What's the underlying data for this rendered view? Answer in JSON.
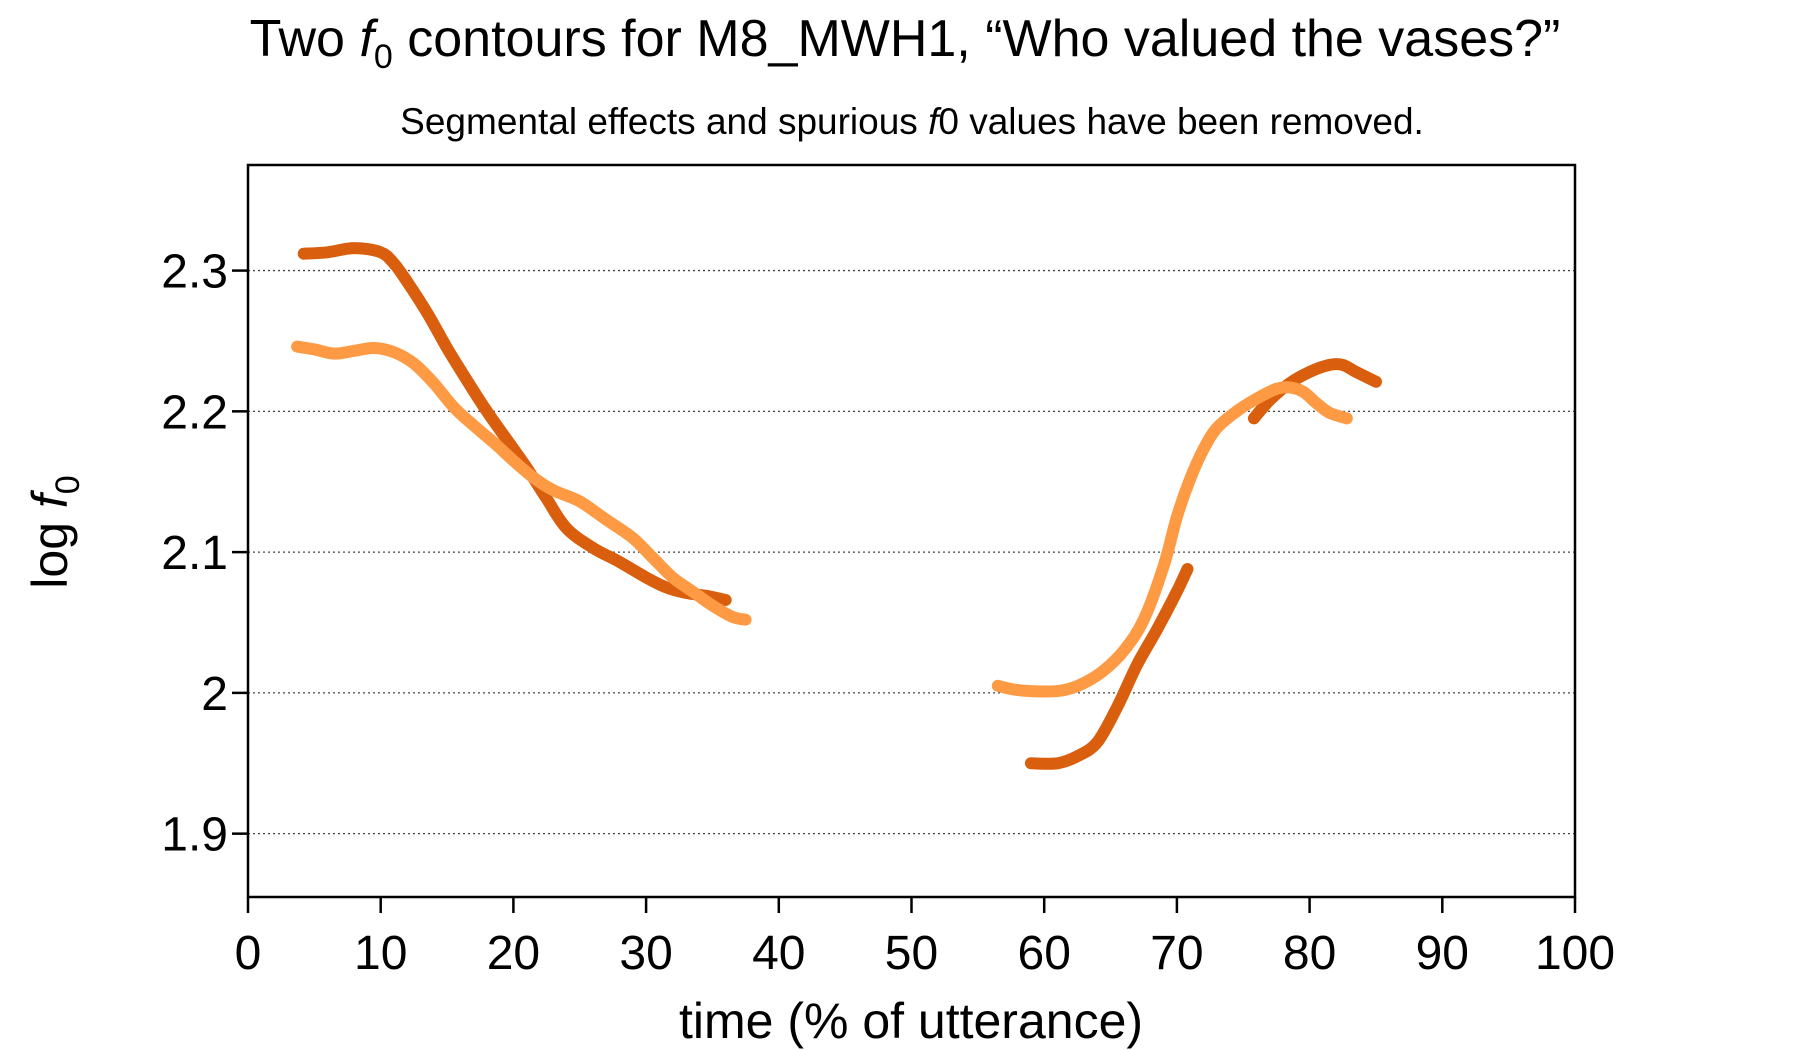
{
  "chart_data": {
    "type": "line",
    "title_parts": {
      "pre": "Two ",
      "f": "f",
      "sub": "0",
      "post": " contours for M8_MWH1, “Who valued the vases?”"
    },
    "subtitle_parts": {
      "pre": "Segmental effects and spurious ",
      "f": "f",
      "post": "0 values have been removed."
    },
    "xlabel": "time (% of utterance)",
    "ylabel_parts": {
      "pre": "log ",
      "f": "f",
      "sub": "0"
    },
    "xlim": [
      0,
      100
    ],
    "ylim": [
      1.855,
      2.375
    ],
    "x_ticks": [
      0,
      10,
      20,
      30,
      40,
      50,
      60,
      70,
      80,
      90,
      100
    ],
    "x_tick_labels": [
      "0",
      "10",
      "20",
      "30",
      "40",
      "50",
      "60",
      "70",
      "80",
      "90",
      "100"
    ],
    "y_ticks": [
      1.9,
      2.0,
      2.1,
      2.2,
      2.3
    ],
    "y_tick_labels": [
      "1.9",
      "2",
      "2.1",
      "2.2",
      "2.3"
    ],
    "grid": "horizontal dotted at y ticks",
    "colors": {
      "dark": "#d95f0e",
      "light": "#fe9a44"
    },
    "series": [
      {
        "color_key": "dark",
        "segments": [
          [
            [
              4.2,
              2.312
            ],
            [
              6,
              2.313
            ],
            [
              8,
              2.316
            ],
            [
              10,
              2.313
            ],
            [
              11,
              2.305
            ],
            [
              12,
              2.292
            ],
            [
              13.5,
              2.27
            ],
            [
              15,
              2.245
            ],
            [
              16.5,
              2.222
            ],
            [
              18,
              2.2
            ],
            [
              19.5,
              2.18
            ],
            [
              21,
              2.16
            ],
            [
              22.5,
              2.138
            ],
            [
              24,
              2.117
            ],
            [
              26,
              2.103
            ],
            [
              28,
              2.093
            ],
            [
              30,
              2.082
            ],
            [
              31.5,
              2.075
            ],
            [
              33,
              2.071
            ],
            [
              34.5,
              2.069
            ],
            [
              36,
              2.066
            ]
          ],
          [
            [
              59,
              1.95
            ],
            [
              61,
              1.95
            ],
            [
              62.5,
              1.955
            ],
            [
              64,
              1.965
            ],
            [
              65.5,
              1.99
            ],
            [
              67,
              2.02
            ],
            [
              68.5,
              2.045
            ],
            [
              70,
              2.072
            ],
            [
              70.8,
              2.088
            ]
          ],
          [
            [
              75.8,
              2.195
            ],
            [
              77,
              2.208
            ],
            [
              78.5,
              2.22
            ],
            [
              80,
              2.228
            ],
            [
              81.5,
              2.233
            ],
            [
              82.5,
              2.233
            ],
            [
              83.5,
              2.228
            ],
            [
              85,
              2.221
            ]
          ]
        ]
      },
      {
        "color_key": "light",
        "segments": [
          [
            [
              3.7,
              2.246
            ],
            [
              5,
              2.244
            ],
            [
              6.5,
              2.241
            ],
            [
              8,
              2.243
            ],
            [
              9.5,
              2.245
            ],
            [
              11,
              2.242
            ],
            [
              12.5,
              2.234
            ],
            [
              14,
              2.22
            ],
            [
              15.5,
              2.203
            ],
            [
              17,
              2.19
            ],
            [
              18.5,
              2.178
            ],
            [
              20,
              2.165
            ],
            [
              21.5,
              2.153
            ],
            [
              23,
              2.144
            ],
            [
              25,
              2.136
            ],
            [
              27,
              2.123
            ],
            [
              29,
              2.11
            ],
            [
              30.5,
              2.096
            ],
            [
              32,
              2.082
            ],
            [
              33.5,
              2.072
            ],
            [
              35,
              2.062
            ],
            [
              36.5,
              2.054
            ],
            [
              37.5,
              2.052
            ]
          ],
          [
            [
              56.5,
              2.005
            ],
            [
              58,
              2.002
            ],
            [
              60,
              2.001
            ],
            [
              61.5,
              2.002
            ],
            [
              63,
              2.007
            ],
            [
              64.5,
              2.016
            ],
            [
              66,
              2.03
            ],
            [
              67.5,
              2.052
            ],
            [
              69,
              2.09
            ],
            [
              70,
              2.125
            ],
            [
              71,
              2.152
            ],
            [
              72,
              2.173
            ],
            [
              73,
              2.188
            ],
            [
              74.5,
              2.2
            ],
            [
              76,
              2.209
            ],
            [
              77.5,
              2.216
            ],
            [
              78.5,
              2.217
            ],
            [
              79.5,
              2.214
            ],
            [
              80.5,
              2.206
            ],
            [
              81.5,
              2.199
            ],
            [
              82.8,
              2.195
            ]
          ]
        ]
      }
    ]
  }
}
